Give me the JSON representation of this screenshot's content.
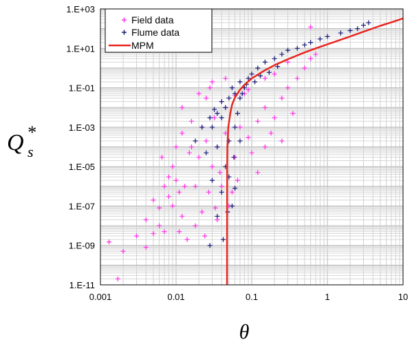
{
  "chart_data": {
    "type": "scatter",
    "x_scale": "log",
    "y_scale": "log",
    "xlim": [
      0.001,
      10
    ],
    "ylim": [
      1e-11,
      1000
    ],
    "grid": true,
    "legend_position": "top-left",
    "xlabel": "θ",
    "ylabel_main": "Q",
    "ylabel_sub": "s",
    "ylabel_sup": "*",
    "x_ticks": [
      {
        "value": 0.001,
        "label": "0.001"
      },
      {
        "value": 0.01,
        "label": "0.01"
      },
      {
        "value": 0.1,
        "label": "0.1"
      },
      {
        "value": 1,
        "label": "1"
      },
      {
        "value": 10,
        "label": "10"
      }
    ],
    "y_ticks": [
      {
        "value": 1e-11,
        "label": "1.E-11"
      },
      {
        "value": 1e-09,
        "label": "1.E-09"
      },
      {
        "value": 1e-07,
        "label": "1.E-07"
      },
      {
        "value": 1e-05,
        "label": "1.E-05"
      },
      {
        "value": 0.001,
        "label": "1.E-03"
      },
      {
        "value": 0.1,
        "label": "1.E-01"
      },
      {
        "value": 10,
        "label": "1.E+01"
      },
      {
        "value": 1000,
        "label": "1.E+03"
      }
    ],
    "series": [
      {
        "name": "Field data",
        "kind": "scatter",
        "color": "#ff33e6",
        "marker": "plus",
        "points": [
          [
            0.0017,
            2e-11
          ],
          [
            0.0013,
            1.5e-09
          ],
          [
            0.002,
            5e-10
          ],
          [
            0.003,
            3e-09
          ],
          [
            0.004,
            8e-10
          ],
          [
            0.005,
            4e-09
          ],
          [
            0.006,
            1e-08
          ],
          [
            0.004,
            2e-08
          ],
          [
            0.007,
            5e-09
          ],
          [
            0.008,
            3e-07
          ],
          [
            0.009,
            1e-07
          ],
          [
            0.006,
            8e-08
          ],
          [
            0.005,
            2e-07
          ],
          [
            0.01,
            2e-06
          ],
          [
            0.011,
            5e-07
          ],
          [
            0.012,
            3e-08
          ],
          [
            0.013,
            1e-06
          ],
          [
            0.008,
            3e-06
          ],
          [
            0.009,
            1e-05
          ],
          [
            0.015,
            5e-05
          ],
          [
            0.016,
            0.0001
          ],
          [
            0.018,
            1e-06
          ],
          [
            0.02,
            3e-05
          ],
          [
            0.022,
            0.001
          ],
          [
            0.025,
            0.0002
          ],
          [
            0.027,
            5e-07
          ],
          [
            0.03,
            1e-05
          ],
          [
            0.032,
            0.003
          ],
          [
            0.035,
            0.0001
          ],
          [
            0.038,
            5e-06
          ],
          [
            0.04,
            0.02
          ],
          [
            0.045,
            0.0005
          ],
          [
            0.05,
            1e-07
          ],
          [
            0.06,
            3e-05
          ],
          [
            0.07,
            0.001
          ],
          [
            0.08,
            0.05
          ],
          [
            0.09,
            0.0003
          ],
          [
            0.1,
            5e-05
          ],
          [
            0.12,
            0.002
          ],
          [
            0.15,
            0.01
          ],
          [
            0.18,
            0.0005
          ],
          [
            0.2,
            0.003
          ],
          [
            0.25,
            0.03
          ],
          [
            0.3,
            0.1
          ],
          [
            0.35,
            0.005
          ],
          [
            0.4,
            0.3
          ],
          [
            0.5,
            1
          ],
          [
            0.6,
            3
          ],
          [
            0.7,
            5
          ],
          [
            0.3,
            2
          ],
          [
            0.2,
            0.5
          ],
          [
            0.15,
            0.3
          ],
          [
            0.025,
            0.03
          ],
          [
            0.03,
            0.2
          ],
          [
            0.045,
            0.3
          ],
          [
            0.6,
            120
          ],
          [
            0.012,
            0.01
          ],
          [
            0.014,
            2e-09
          ],
          [
            0.018,
            1e-08
          ],
          [
            0.022,
            5e-08
          ],
          [
            0.035,
            2e-08
          ],
          [
            0.04,
            1e-06
          ],
          [
            0.055,
            5e-07
          ],
          [
            0.065,
            2e-06
          ],
          [
            0.12,
            5e-06
          ],
          [
            0.15,
            0.0001
          ],
          [
            0.25,
            0.0002
          ],
          [
            0.045,
            0.01
          ],
          [
            0.06,
            0.04
          ],
          [
            0.09,
            0.08
          ],
          [
            0.01,
            0.0001
          ],
          [
            0.012,
            0.0005
          ],
          [
            0.016,
            0.002
          ],
          [
            0.02,
            0.05
          ],
          [
            0.028,
            0.1
          ],
          [
            0.007,
            1e-06
          ],
          [
            0.0065,
            3e-05
          ],
          [
            0.011,
            5e-09
          ],
          [
            0.024,
            3e-09
          ],
          [
            0.033,
            8e-08
          ]
        ]
      },
      {
        "name": "Flume data",
        "kind": "scatter",
        "color": "#1c1f7a",
        "marker": "plus",
        "points": [
          [
            0.03,
            0.001
          ],
          [
            0.035,
            0.005
          ],
          [
            0.04,
            0.02
          ],
          [
            0.045,
            0.01
          ],
          [
            0.05,
            0.03
          ],
          [
            0.055,
            0.1
          ],
          [
            0.06,
            0.05
          ],
          [
            0.07,
            0.2
          ],
          [
            0.08,
            0.1
          ],
          [
            0.09,
            0.3
          ],
          [
            0.1,
            0.5
          ],
          [
            0.12,
            1
          ],
          [
            0.15,
            2
          ],
          [
            0.2,
            3
          ],
          [
            0.25,
            5
          ],
          [
            0.3,
            8
          ],
          [
            0.4,
            10
          ],
          [
            0.5,
            15
          ],
          [
            0.6,
            20
          ],
          [
            0.8,
            30
          ],
          [
            1,
            40
          ],
          [
            1.5,
            60
          ],
          [
            2,
            80
          ],
          [
            2.5,
            100
          ],
          [
            3,
            150
          ],
          [
            3.5,
            200
          ],
          [
            0.04,
            0.003
          ],
          [
            0.05,
            0.0002
          ],
          [
            0.045,
            1e-05
          ],
          [
            0.05,
            3e-06
          ],
          [
            0.055,
            1e-07
          ],
          [
            0.04,
            5e-07
          ],
          [
            0.03,
            2e-06
          ],
          [
            0.025,
            5e-05
          ],
          [
            0.035,
            0.0001
          ],
          [
            0.06,
            0.001
          ],
          [
            0.065,
            0.005
          ],
          [
            0.07,
            0.03
          ],
          [
            0.075,
            0.05
          ],
          [
            0.085,
            0.15
          ],
          [
            0.028,
            0.003
          ],
          [
            0.032,
            0.008
          ],
          [
            0.022,
            0.001
          ],
          [
            0.018,
            0.0002
          ],
          [
            0.11,
            0.2
          ],
          [
            0.13,
            0.4
          ],
          [
            0.17,
            0.6
          ],
          [
            0.22,
            1.2
          ],
          [
            0.035,
            3e-08
          ],
          [
            0.042,
            2e-09
          ],
          [
            0.048,
            5e-08
          ],
          [
            0.028,
            1e-09
          ],
          [
            0.06,
            8e-07
          ],
          [
            0.058,
            3e-05
          ],
          [
            0.07,
            0.0002
          ]
        ]
      },
      {
        "name": "MPM",
        "kind": "line",
        "color": "#e8241f",
        "points": [
          [
            0.0472,
            1e-11
          ],
          [
            0.04721,
            1e-09
          ],
          [
            0.04725,
            1e-07
          ],
          [
            0.0474,
            1e-05
          ],
          [
            0.0477,
            0.0001
          ],
          [
            0.049,
            0.001
          ],
          [
            0.052,
            0.005
          ],
          [
            0.055,
            0.014
          ],
          [
            0.06,
            0.032
          ],
          [
            0.07,
            0.08
          ],
          [
            0.08,
            0.14
          ],
          [
            0.1,
            0.3
          ],
          [
            0.15,
            0.78
          ],
          [
            0.2,
            1.4
          ],
          [
            0.3,
            2.8
          ],
          [
            0.5,
            6.2
          ],
          [
            0.7,
            10
          ],
          [
            1,
            16
          ],
          [
            2,
            40
          ],
          [
            3,
            70
          ],
          [
            5,
            140
          ],
          [
            7,
            210
          ],
          [
            10,
            330
          ]
        ]
      }
    ]
  }
}
